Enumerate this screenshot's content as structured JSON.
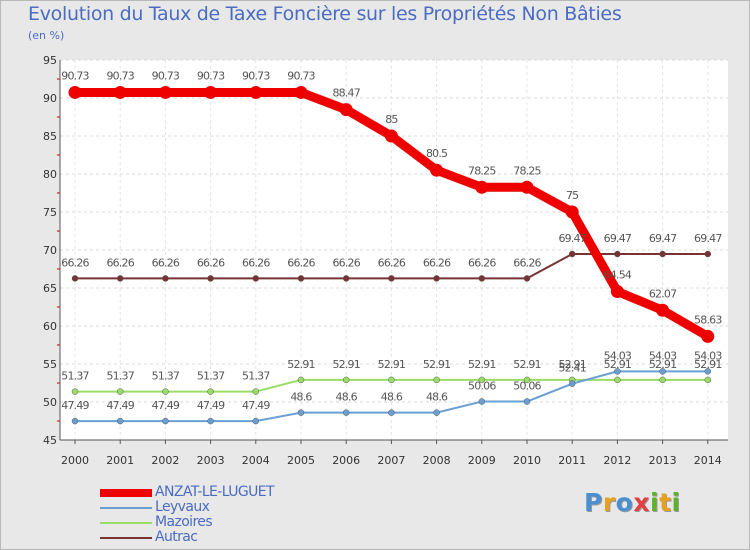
{
  "chart_data": {
    "type": "line",
    "title": "Evolution du Taux de Taxe Foncière sur les Propriétés Non Bâties",
    "ylabel": "(en %)",
    "xlabel": "",
    "ylim": [
      45,
      95
    ],
    "yticks": [
      "45",
      "50",
      "55",
      "60",
      "65",
      "70",
      "75",
      "80",
      "85",
      "90",
      "95"
    ],
    "categories": [
      "2000",
      "2001",
      "2002",
      "2003",
      "2004",
      "2005",
      "2006",
      "2007",
      "2008",
      "2009",
      "2010",
      "2011",
      "2012",
      "2013",
      "2014"
    ],
    "series": [
      {
        "name": "ANZAT-LE-LUGUET",
        "color": "#ee0000",
        "values": [
          90.73,
          90.73,
          90.73,
          90.73,
          90.73,
          90.73,
          88.47,
          85,
          80.5,
          78.25,
          78.25,
          75,
          64.54,
          62.07,
          58.63
        ],
        "labels": [
          "90.73",
          "90.73",
          "90.73",
          "90.73",
          "90.73",
          "90.73",
          "88.47",
          "85",
          "80.5",
          "78.25",
          "78.25",
          "75",
          "64.54",
          "62.07",
          "58.63"
        ]
      },
      {
        "name": "Leyvaux",
        "color": "#6a9fd4",
        "values": [
          47.49,
          47.49,
          47.49,
          47.49,
          47.49,
          48.6,
          48.6,
          48.6,
          48.6,
          50.06,
          50.06,
          52.41,
          54.03,
          54.03,
          54.03
        ],
        "labels": [
          "47.49",
          "47.49",
          "47.49",
          "47.49",
          "47.49",
          "48.6",
          "48.6",
          "48.6",
          "48.6",
          "50.06",
          "50.06",
          "52.41",
          "54.03",
          "54.03",
          "54.03"
        ]
      },
      {
        "name": "Mazoires",
        "color": "#99dd66",
        "values": [
          51.37,
          51.37,
          51.37,
          51.37,
          51.37,
          52.91,
          52.91,
          52.91,
          52.91,
          52.91,
          52.91,
          52.91,
          52.91,
          52.91,
          52.91
        ],
        "labels": [
          "51.37",
          "51.37",
          "51.37",
          "51.37",
          "51.37",
          "52.91",
          "52.91",
          "52.91",
          "52.91",
          "52.91",
          "52.91",
          "52.91",
          "52.91",
          "52.91",
          "52.91"
        ]
      },
      {
        "name": "Autrac",
        "color": "#773333",
        "values": [
          66.26,
          66.26,
          66.26,
          66.26,
          66.26,
          66.26,
          66.26,
          66.26,
          66.26,
          66.26,
          66.26,
          69.47,
          69.47,
          69.47,
          69.47
        ],
        "labels": [
          "66.26",
          "66.26",
          "66.26",
          "66.26",
          "66.26",
          "66.26",
          "66.26",
          "66.26",
          "66.26",
          "66.26",
          "66.26",
          "69.47",
          "69.47",
          "69.47",
          "69.47"
        ]
      }
    ],
    "legend_position": "bottom-left"
  },
  "logo": {
    "letters": [
      "P",
      "r",
      "o",
      "x",
      "i",
      "t",
      "i"
    ],
    "colors": [
      "#4a8fd0",
      "#e8a020",
      "#4a8fd0",
      "#e04040",
      "#60b030",
      "#e8a020",
      "#60b030"
    ]
  }
}
